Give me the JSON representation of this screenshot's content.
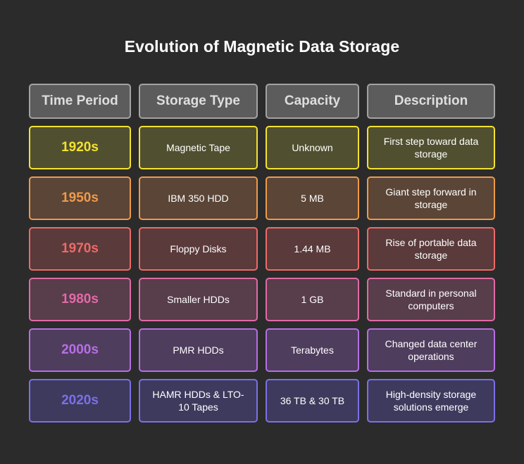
{
  "title": "Evolution of Magnetic Data Storage",
  "headers": [
    "Time Period",
    "Storage Type",
    "Capacity",
    "Description"
  ],
  "rows": [
    {
      "period": "1920s",
      "type": "Magnetic Tape",
      "capacity": "Unknown",
      "description": "First step toward data storage",
      "color": "#f5e22d",
      "fill": "#505031"
    },
    {
      "period": "1950s",
      "type": "IBM 350 HDD",
      "capacity": "5 MB",
      "description": "Giant step forward in storage",
      "color": "#ef9a49",
      "fill": "#5a4537"
    },
    {
      "period": "1970s",
      "type": "Floppy Disks",
      "capacity": "1.44 MB",
      "description": "Rise of portable data storage",
      "color": "#ee6a68",
      "fill": "#5a3a3b"
    },
    {
      "period": "1980s",
      "type": "Smaller HDDs",
      "capacity": "1 GB",
      "description": "Standard in personal computers",
      "color": "#e16aa6",
      "fill": "#583d4b"
    },
    {
      "period": "2000s",
      "type": "PMR HDDs",
      "capacity": "Terabytes",
      "description": "Changed data center operations",
      "color": "#b66fe4",
      "fill": "#4f3d5d"
    },
    {
      "period": "2020s",
      "type": "HAMR HDDs & LTO-10 Tapes",
      "capacity": "36 TB & 30 TB",
      "description": "High-density storage solutions emerge",
      "color": "#7b70e6",
      "fill": "#3e3a5d"
    }
  ]
}
